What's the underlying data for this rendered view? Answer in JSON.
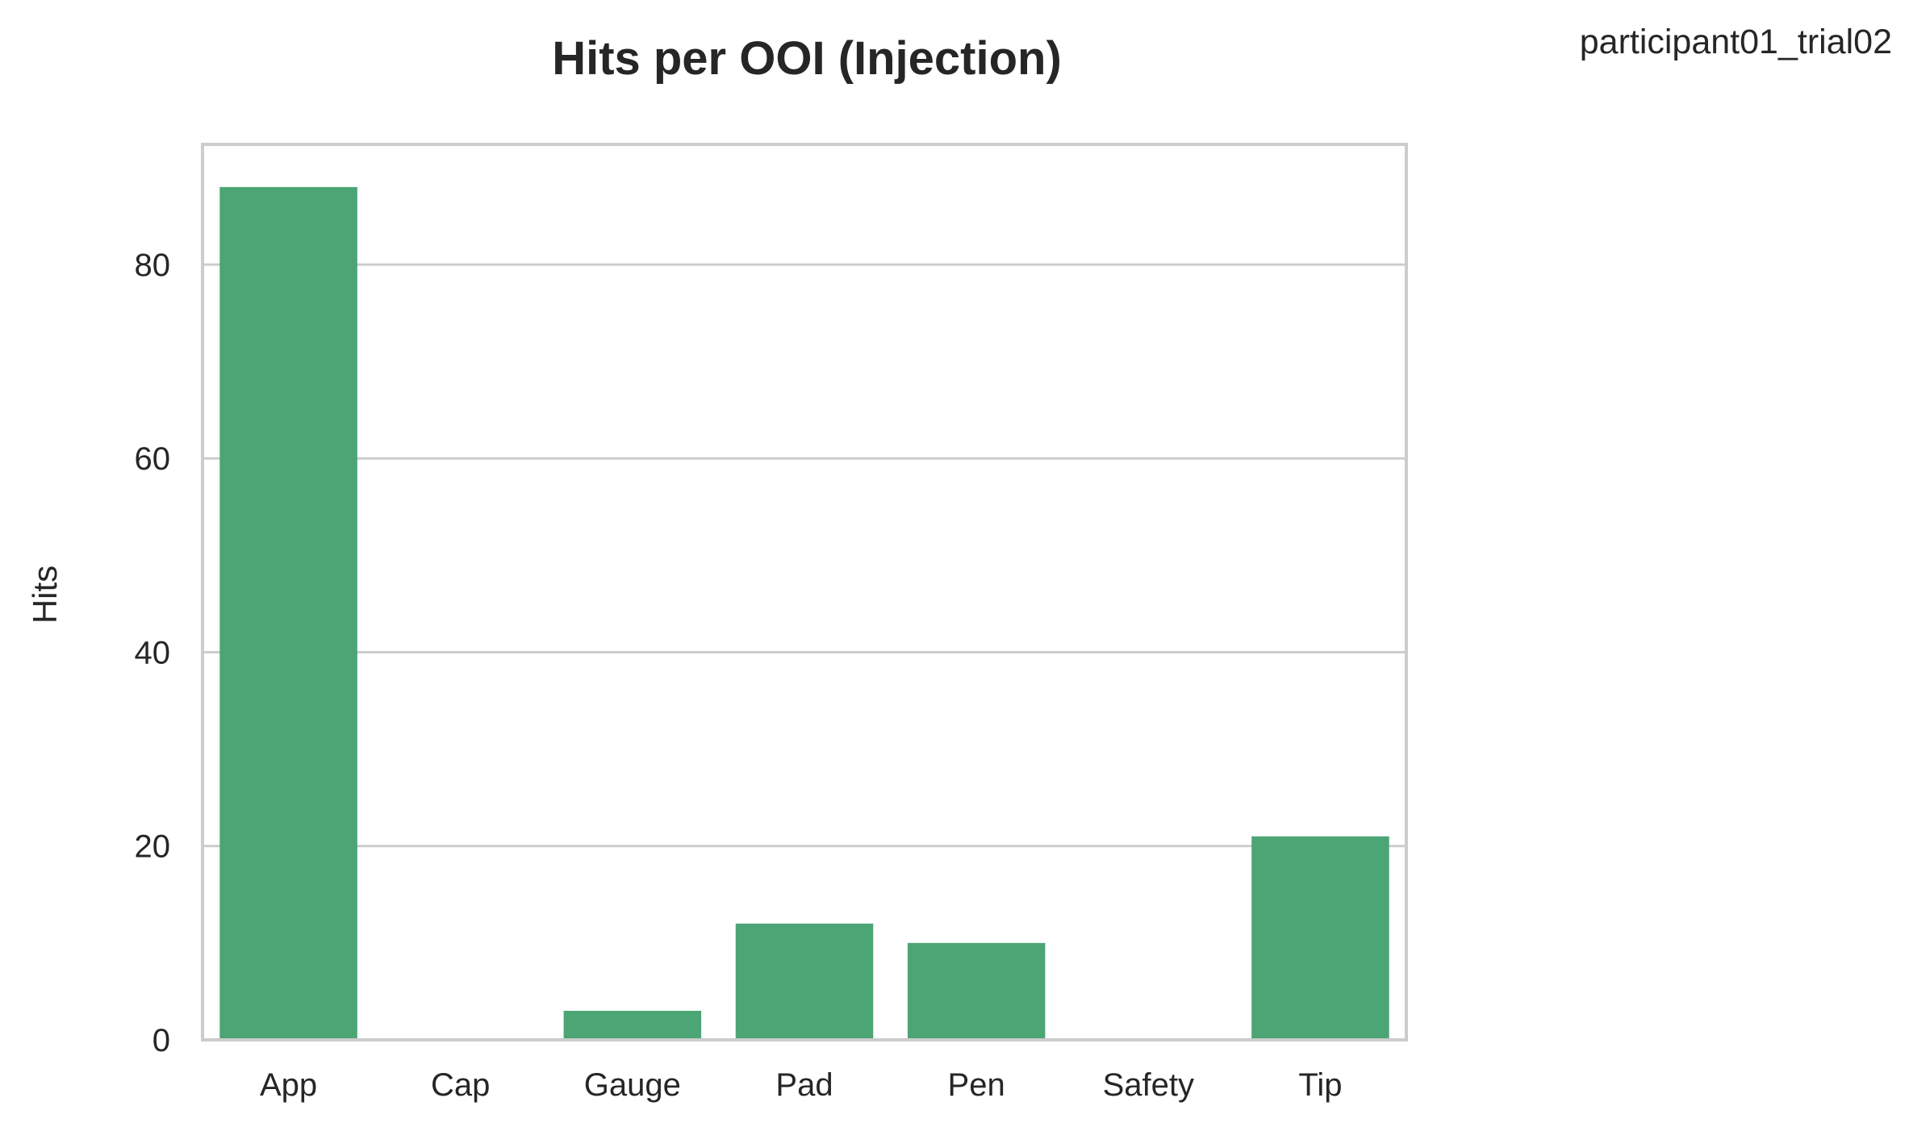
{
  "chart_data": {
    "type": "bar",
    "title": "Hits per OOI (Injection)",
    "subtitle": "participant01_trial02",
    "xlabel": "",
    "ylabel": "Hits",
    "categories": [
      "App",
      "Cap",
      "Gauge",
      "Pad",
      "Pen",
      "Safety",
      "Tip"
    ],
    "values": [
      88,
      0,
      3,
      12,
      10,
      0,
      21
    ],
    "ylim": [
      0,
      92.4
    ],
    "yticks": [
      0,
      20,
      40,
      60,
      80
    ],
    "grid": "horizontal",
    "legend": "none",
    "bar_color": "#4ca574",
    "grid_color": "#cccccc",
    "frame_color": "#cccccc",
    "background": "#ffffff"
  }
}
